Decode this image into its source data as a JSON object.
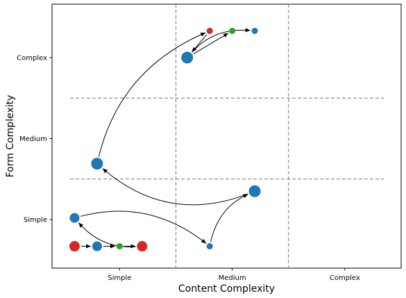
{
  "chart_data": {
    "type": "scatter",
    "title": "",
    "xlabel": "Content Complexity",
    "ylabel": "Form Complexity",
    "x_ticks": [
      {
        "value": 1,
        "label": "Simple"
      },
      {
        "value": 2,
        "label": "Medium"
      },
      {
        "value": 3,
        "label": "Complex"
      }
    ],
    "y_ticks": [
      {
        "value": 1,
        "label": "Simple"
      },
      {
        "value": 2,
        "label": "Medium"
      },
      {
        "value": 3,
        "label": "Complex"
      }
    ],
    "xlim": [
      0.4,
      3.5
    ],
    "ylim": [
      0.4,
      3.66
    ],
    "grid": false,
    "dividers": {
      "x": [
        1.5,
        2.5
      ],
      "y": [
        1.5,
        2.5
      ]
    },
    "colors": {
      "blue": "#1f77b4",
      "red": "#d62728",
      "green": "#2ca02c",
      "divider": "#777777",
      "arrow": "#000000"
    },
    "points": [
      {
        "id": "p1",
        "x": 0.6,
        "y": 0.67,
        "size": "large",
        "color": "red"
      },
      {
        "id": "p2",
        "x": 0.8,
        "y": 0.67,
        "size": "medium",
        "color": "blue"
      },
      {
        "id": "p3",
        "x": 1.0,
        "y": 0.67,
        "size": "small",
        "color": "green"
      },
      {
        "id": "p4",
        "x": 1.2,
        "y": 0.67,
        "size": "large",
        "color": "red"
      },
      {
        "id": "p5",
        "x": 0.6,
        "y": 1.02,
        "size": "medium",
        "color": "blue"
      },
      {
        "id": "p6",
        "x": 1.8,
        "y": 0.67,
        "size": "small",
        "color": "blue"
      },
      {
        "id": "p7",
        "x": 2.2,
        "y": 1.35,
        "size": "xlarge",
        "color": "blue"
      },
      {
        "id": "p8",
        "x": 0.8,
        "y": 1.69,
        "size": "xlarge",
        "color": "blue"
      },
      {
        "id": "p9",
        "x": 1.6,
        "y": 3.0,
        "size": "xlarge",
        "color": "blue"
      },
      {
        "id": "p10",
        "x": 1.8,
        "y": 3.33,
        "size": "small",
        "color": "red"
      },
      {
        "id": "p11",
        "x": 2.0,
        "y": 3.33,
        "size": "small",
        "color": "green"
      },
      {
        "id": "p12",
        "x": 2.2,
        "y": 3.33,
        "size": "small",
        "color": "blue"
      }
    ],
    "arrows": [
      {
        "from": "p1",
        "to": "p2",
        "curve": 0
      },
      {
        "from": "p2",
        "to": "p3",
        "curve": 0
      },
      {
        "from": "p3",
        "to": "p4",
        "curve": 0
      },
      {
        "from": "p4",
        "to": "p5",
        "curve": 0.25
      },
      {
        "from": "p5",
        "to": "p6",
        "curve": 0.25
      },
      {
        "from": "p6",
        "to": "p7",
        "curve": 0.25
      },
      {
        "from": "p7",
        "to": "p8",
        "curve": 0.3
      },
      {
        "from": "p8",
        "to": "p10",
        "curve": 0.25
      },
      {
        "from": "p10",
        "to": "p9",
        "curve": 0
      },
      {
        "from": "p9",
        "to": "p11",
        "curve": 0
      },
      {
        "from": "p9",
        "to": "p12",
        "curve": 0.25
      }
    ]
  }
}
